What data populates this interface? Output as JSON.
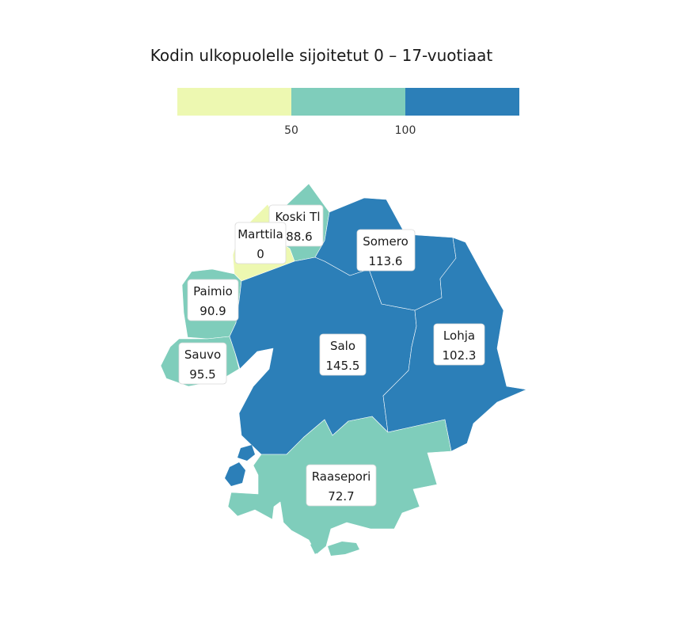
{
  "title": "Kodin ulkopuolelle sijoitetut 0 – 17-vuotiaat",
  "legend": {
    "bins": [
      {
        "color": "#edf8b1"
      },
      {
        "color": "#7fcdbb"
      },
      {
        "color": "#2c7fb8"
      }
    ],
    "ticks": [
      "50",
      "100"
    ]
  },
  "regions": [
    {
      "name": "Koski Tl",
      "value": "88.6",
      "color": "#7fcdbb"
    },
    {
      "name": "Marttila",
      "value": "0",
      "color": "#edf8b1"
    },
    {
      "name": "Somero",
      "value": "113.6",
      "color": "#2c7fb8"
    },
    {
      "name": "Paimio",
      "value": "90.9",
      "color": "#7fcdbb"
    },
    {
      "name": "Sauvo",
      "value": "95.5",
      "color": "#7fcdbb"
    },
    {
      "name": "Salo",
      "value": "145.5",
      "color": "#2c7fb8"
    },
    {
      "name": "Lohja",
      "value": "102.3",
      "color": "#2c7fb8"
    },
    {
      "name": "Raasepori",
      "value": "72.7",
      "color": "#7fcdbb"
    }
  ]
}
